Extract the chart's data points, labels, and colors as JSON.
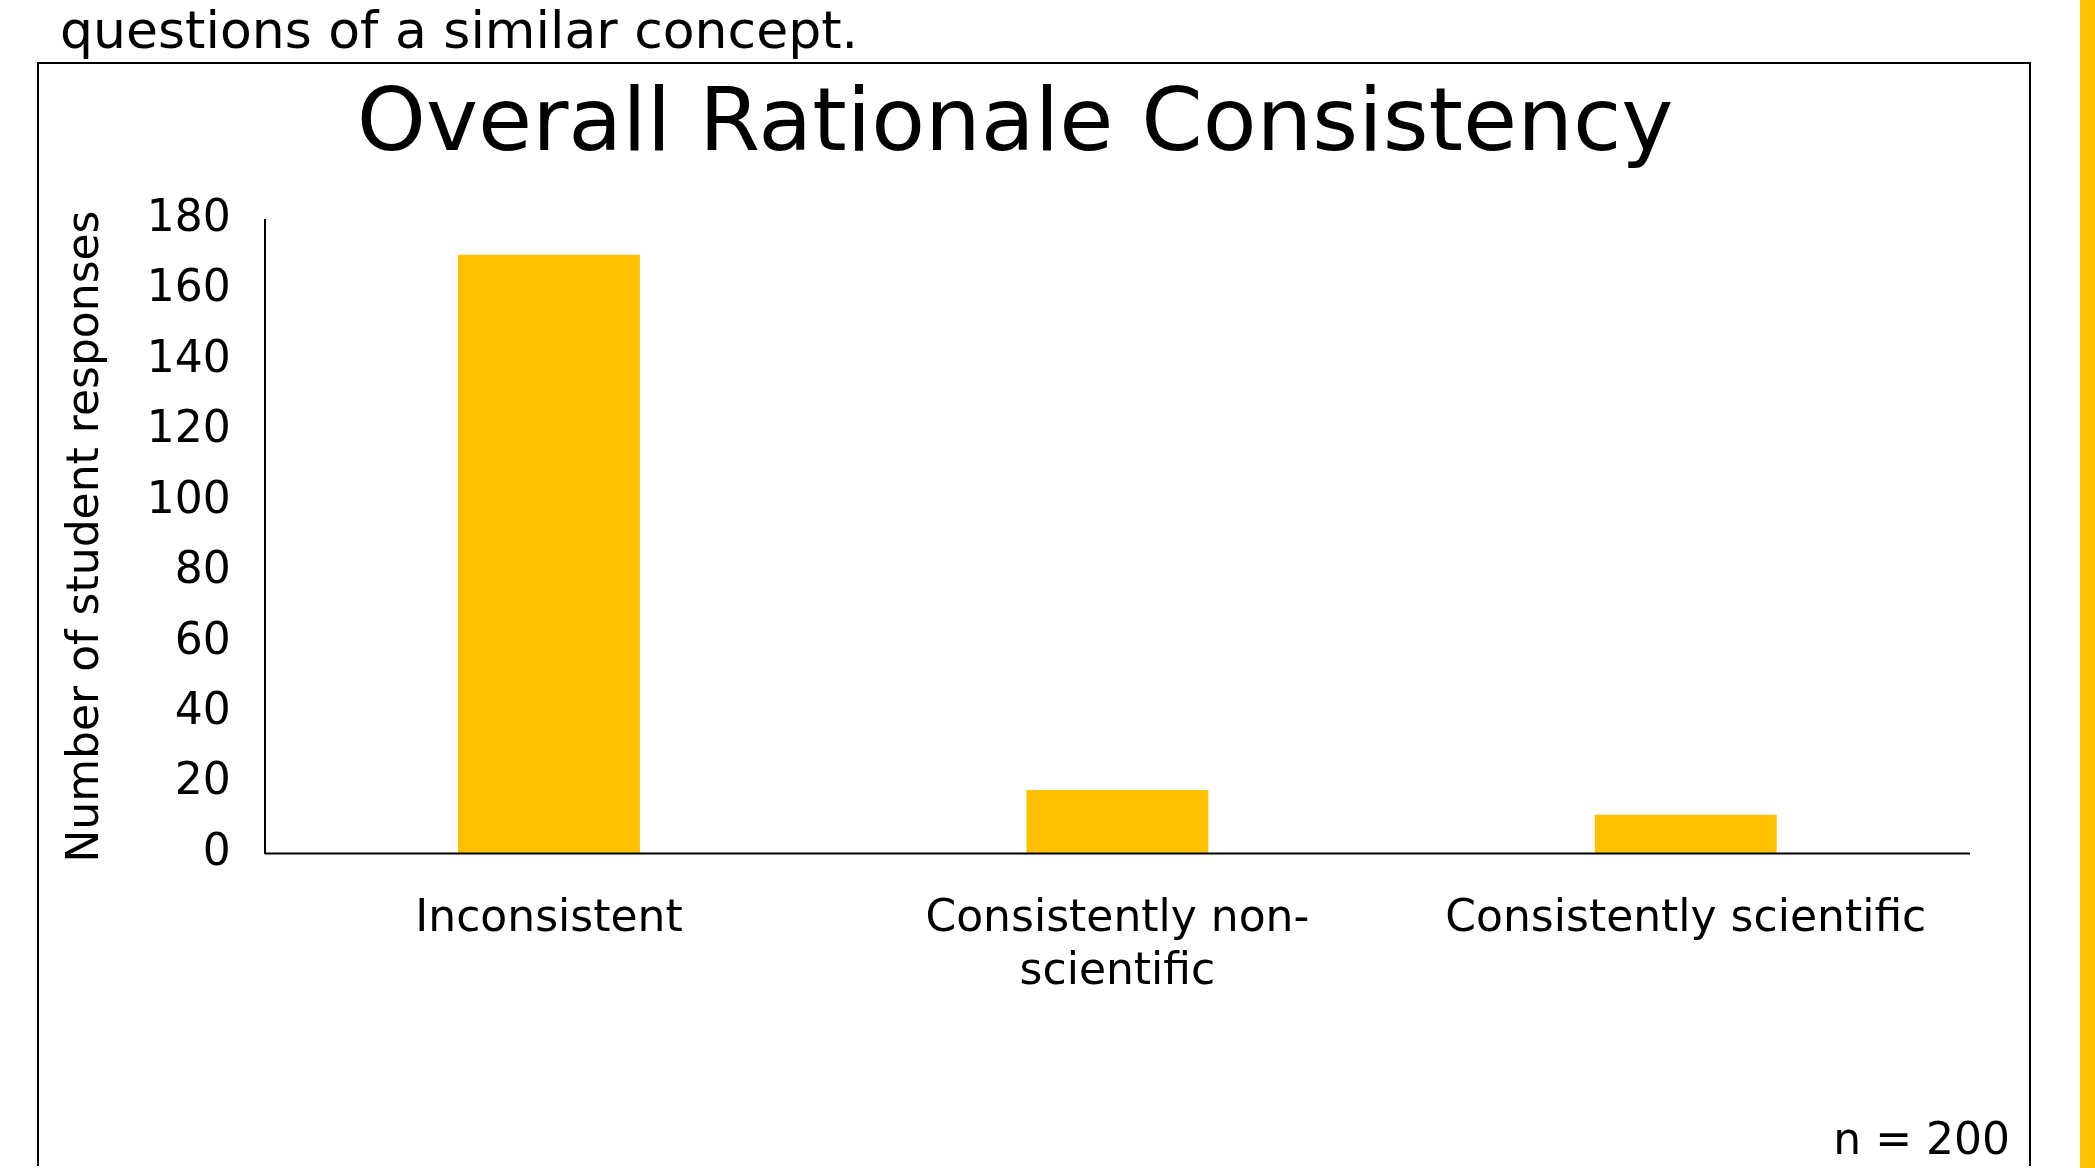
{
  "chart_data": {
    "type": "bar",
    "title": "Overall Rationale Consistency",
    "ylabel": "Number of student responses",
    "categories": [
      "Inconsistent",
      "Consistently non-scientific",
      "Consistently scientific"
    ],
    "values": [
      170,
      18,
      11
    ],
    "color": "#ffc000",
    "ylim": [
      0,
      180
    ],
    "yticks": [
      0,
      20,
      40,
      60,
      80,
      100,
      120,
      140,
      160,
      180
    ],
    "grid": false,
    "annotations": [
      "questions of a similar concept.",
      "n = 200"
    ]
  }
}
